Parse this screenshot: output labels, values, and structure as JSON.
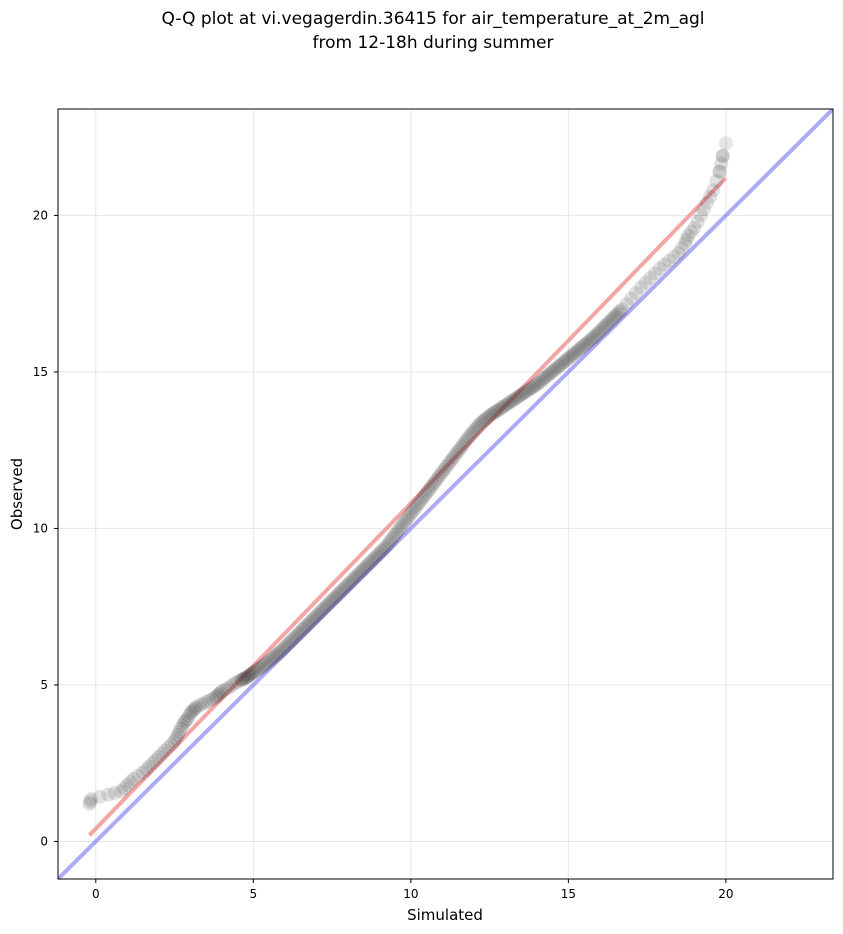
{
  "chart_data": {
    "type": "scatter",
    "title_lines": [
      "Q-Q plot at vi.vegagerdin.36415 for air_temperature_at_2m_agl",
      "from 12-18h during summer"
    ],
    "xlabel": "Simulated",
    "ylabel": "Observed",
    "xlim": [
      -1.2,
      23.4
    ],
    "ylim": [
      -1.2,
      23.4
    ],
    "xticks": [
      0,
      5,
      10,
      15,
      20
    ],
    "yticks": [
      0,
      5,
      10,
      15,
      20
    ],
    "grid": true,
    "point_color": "#333333",
    "fit_color": "#f08080",
    "identity_color": "#6666ee",
    "fit_line": {
      "x": [
        -0.2,
        20.0
      ],
      "y": [
        0.2,
        21.2
      ]
    },
    "identity_line": {
      "x": [
        -1.2,
        23.4
      ],
      "y": [
        -1.2,
        23.4
      ]
    },
    "quantiles": {
      "x": [
        -0.2,
        -0.15,
        0.4,
        0.8,
        1.0,
        1.2,
        1.5,
        1.7,
        1.9,
        2.1,
        2.3,
        2.5,
        2.6,
        2.7,
        2.8,
        2.9,
        3.0,
        3.1,
        3.2,
        3.4,
        3.6,
        3.8,
        3.9,
        4.0,
        4.2,
        4.4,
        4.6,
        4.8,
        5.0,
        5.3,
        5.6,
        5.9,
        6.2,
        6.5,
        6.8,
        7.1,
        7.4,
        7.7,
        8.0,
        8.3,
        8.6,
        8.9,
        9.2,
        9.5,
        9.8,
        10.1,
        10.4,
        10.7,
        11.0,
        11.3,
        11.6,
        11.9,
        12.2,
        12.5,
        12.8,
        13.1,
        13.4,
        13.7,
        14.0,
        14.3,
        14.6,
        14.9,
        15.2,
        15.5,
        15.8,
        16.1,
        16.4,
        16.7,
        17.0,
        17.3,
        17.6,
        17.9,
        18.2,
        18.5,
        18.7,
        18.8,
        19.0,
        19.2,
        19.4,
        19.6,
        19.8,
        19.9
      ],
      "y": [
        1.2,
        1.35,
        1.5,
        1.6,
        1.8,
        2.0,
        2.2,
        2.4,
        2.6,
        2.8,
        3.0,
        3.2,
        3.4,
        3.6,
        3.8,
        3.9,
        4.1,
        4.2,
        4.3,
        4.4,
        4.5,
        4.6,
        4.7,
        4.8,
        4.9,
        5.05,
        5.15,
        5.25,
        5.4,
        5.6,
        5.85,
        6.1,
        6.4,
        6.7,
        7.0,
        7.3,
        7.6,
        7.9,
        8.2,
        8.5,
        8.8,
        9.1,
        9.4,
        9.8,
        10.2,
        10.6,
        11.0,
        11.4,
        11.8,
        12.2,
        12.6,
        13.0,
        13.35,
        13.6,
        13.8,
        14.0,
        14.2,
        14.4,
        14.6,
        14.85,
        15.1,
        15.35,
        15.6,
        15.85,
        16.1,
        16.4,
        16.7,
        17.0,
        17.35,
        17.7,
        18.0,
        18.3,
        18.55,
        18.8,
        19.1,
        19.35,
        19.6,
        20.0,
        20.4,
        20.8,
        21.4,
        21.9
      ]
    },
    "tail_points": {
      "x": [
        19.8,
        19.9,
        20.0
      ],
      "y": [
        21.4,
        21.9,
        22.3
      ]
    }
  }
}
